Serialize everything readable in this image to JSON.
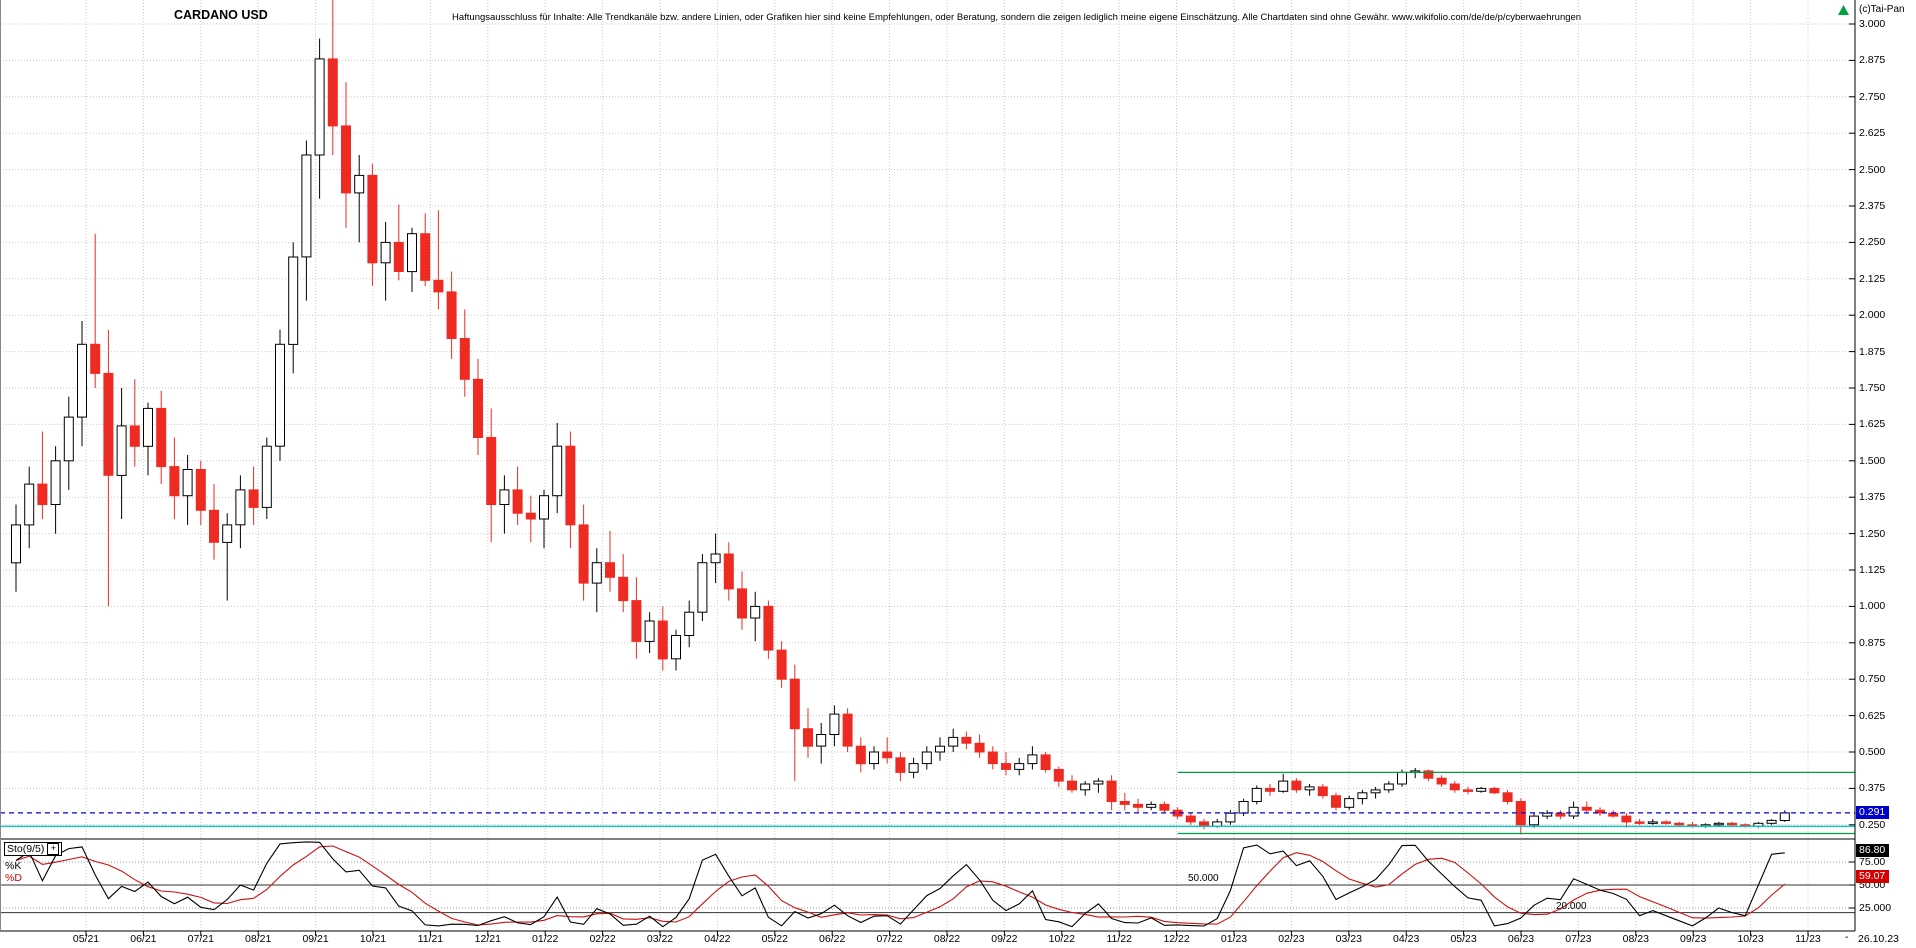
{
  "header": {
    "title": "CARDANO USD",
    "disclaimer": "Haftungsausschluss für Inhalte: Alle Trendkanäle bzw. andere Linien, oder Grafiken hier sind keine Empfehlungen, oder Beratung, sondern die zeigen lediglich meine eigene Einschätzung. Alle Chartdaten sind ohne Gewähr.  www.wikifolio.com/de/de/p/cyberwaehrungen",
    "copyright": "(c)Tai-Pan"
  },
  "price_axis": {
    "labels": [
      "3.000",
      "2.875",
      "2.750",
      "2.625",
      "2.500",
      "2.375",
      "2.250",
      "2.125",
      "2.000",
      "1.875",
      "1.750",
      "1.625",
      "1.500",
      "1.375",
      "1.250",
      "1.125",
      "1.000",
      "0.875",
      "0.750",
      "0.625",
      "0.500",
      "0.375",
      "0.250"
    ]
  },
  "x_axis": {
    "labels": [
      "05/21",
      "06/21",
      "07/21",
      "08/21",
      "09/21",
      "10/21",
      "11/21",
      "12/21",
      "01/22",
      "02/22",
      "03/22",
      "04/22",
      "05/22",
      "06/22",
      "07/22",
      "08/22",
      "09/22",
      "10/22",
      "11/22",
      "12/22",
      "01/23",
      "02/23",
      "03/23",
      "04/23",
      "05/23",
      "06/23",
      "07/23",
      "08/23",
      "09/23",
      "10/23",
      "11/23"
    ],
    "tick_dash": "-",
    "end_date": "26.10.23"
  },
  "current_price": {
    "label": "0.291",
    "value": 0.291
  },
  "sto_panel": {
    "indicator_label": "Sto(9/5)",
    "plus_icon": "+",
    "k_label": "%K",
    "d_label": "%D",
    "k_value": "86.80",
    "d_value": "59.07",
    "k_numeric": 86.8,
    "d_numeric": 59.07,
    "axis_labels": [
      {
        "text": "75.00",
        "value": 75
      },
      {
        "text": "50.00",
        "value": 50
      },
      {
        "text": "25.000",
        "value": 25
      }
    ],
    "annotations": [
      {
        "text": "50.000",
        "value": 50
      },
      {
        "text": "20.000",
        "value": 20
      }
    ],
    "grid_dotted": [
      75,
      25
    ]
  },
  "colors": {
    "up": "#000000",
    "up_fill": "#ffffff",
    "down": "#ee2b22",
    "k_line": "#000000",
    "d_line": "#cc1111",
    "grid": "#c9c9c9",
    "frame": "#000000",
    "green_line": "#00a040",
    "cyan_line": "#00cccc",
    "blue_dashed": "#0000ee",
    "arrow_green": "#00a040"
  },
  "chart_data": {
    "type": "candlestick",
    "title": "CARDANO USD",
    "interval": "weekly",
    "x_range": [
      "04/2021",
      "26.10.2023"
    ],
    "ylim": [
      0.21,
      3.07
    ],
    "grid": true,
    "last_close": 0.291,
    "ohlc": [
      [
        1.15,
        1.35,
        1.05,
        1.28
      ],
      [
        1.28,
        1.48,
        1.2,
        1.42
      ],
      [
        1.42,
        1.6,
        1.3,
        1.35
      ],
      [
        1.35,
        1.55,
        1.25,
        1.5
      ],
      [
        1.5,
        1.72,
        1.4,
        1.65
      ],
      [
        1.65,
        1.98,
        1.55,
        1.9
      ],
      [
        1.9,
        2.28,
        1.75,
        1.8
      ],
      [
        1.8,
        1.95,
        1.0,
        1.45
      ],
      [
        1.45,
        1.75,
        1.3,
        1.62
      ],
      [
        1.62,
        1.78,
        1.48,
        1.55
      ],
      [
        1.55,
        1.7,
        1.45,
        1.68
      ],
      [
        1.68,
        1.74,
        1.42,
        1.48
      ],
      [
        1.48,
        1.58,
        1.3,
        1.38
      ],
      [
        1.38,
        1.52,
        1.28,
        1.47
      ],
      [
        1.47,
        1.5,
        1.28,
        1.33
      ],
      [
        1.33,
        1.42,
        1.16,
        1.22
      ],
      [
        1.22,
        1.32,
        1.02,
        1.28
      ],
      [
        1.28,
        1.45,
        1.2,
        1.4
      ],
      [
        1.4,
        1.48,
        1.28,
        1.34
      ],
      [
        1.34,
        1.58,
        1.3,
        1.55
      ],
      [
        1.55,
        1.95,
        1.5,
        1.9
      ],
      [
        1.9,
        2.25,
        1.8,
        2.2
      ],
      [
        2.2,
        2.6,
        2.05,
        2.55
      ],
      [
        2.55,
        2.95,
        2.4,
        2.88
      ],
      [
        2.88,
        3.1,
        2.55,
        2.65
      ],
      [
        2.65,
        2.8,
        2.3,
        2.42
      ],
      [
        2.42,
        2.55,
        2.25,
        2.48
      ],
      [
        2.48,
        2.52,
        2.1,
        2.18
      ],
      [
        2.18,
        2.32,
        2.05,
        2.25
      ],
      [
        2.25,
        2.38,
        2.12,
        2.15
      ],
      [
        2.15,
        2.3,
        2.08,
        2.28
      ],
      [
        2.28,
        2.35,
        2.1,
        2.12
      ],
      [
        2.12,
        2.36,
        2.02,
        2.08
      ],
      [
        2.08,
        2.15,
        1.85,
        1.92
      ],
      [
        1.92,
        2.02,
        1.72,
        1.78
      ],
      [
        1.78,
        1.85,
        1.52,
        1.58
      ],
      [
        1.58,
        1.68,
        1.22,
        1.35
      ],
      [
        1.35,
        1.45,
        1.25,
        1.4
      ],
      [
        1.4,
        1.48,
        1.28,
        1.32
      ],
      [
        1.32,
        1.38,
        1.22,
        1.3
      ],
      [
        1.3,
        1.4,
        1.2,
        1.38
      ],
      [
        1.38,
        1.63,
        1.32,
        1.55
      ],
      [
        1.55,
        1.6,
        1.2,
        1.28
      ],
      [
        1.28,
        1.35,
        1.02,
        1.08
      ],
      [
        1.08,
        1.2,
        0.98,
        1.15
      ],
      [
        1.15,
        1.26,
        1.05,
        1.1
      ],
      [
        1.1,
        1.18,
        0.98,
        1.02
      ],
      [
        1.02,
        1.1,
        0.82,
        0.88
      ],
      [
        0.88,
        0.98,
        0.84,
        0.95
      ],
      [
        0.95,
        1.0,
        0.78,
        0.82
      ],
      [
        0.82,
        0.92,
        0.78,
        0.9
      ],
      [
        0.9,
        1.02,
        0.86,
        0.98
      ],
      [
        0.98,
        1.18,
        0.95,
        1.15
      ],
      [
        1.15,
        1.25,
        1.08,
        1.18
      ],
      [
        1.18,
        1.22,
        1.02,
        1.06
      ],
      [
        1.06,
        1.12,
        0.92,
        0.96
      ],
      [
        0.96,
        1.05,
        0.88,
        1.0
      ],
      [
        1.0,
        1.02,
        0.82,
        0.85
      ],
      [
        0.85,
        0.88,
        0.72,
        0.75
      ],
      [
        0.75,
        0.8,
        0.4,
        0.58
      ],
      [
        0.58,
        0.65,
        0.48,
        0.52
      ],
      [
        0.52,
        0.6,
        0.46,
        0.56
      ],
      [
        0.56,
        0.66,
        0.52,
        0.63
      ],
      [
        0.63,
        0.65,
        0.5,
        0.52
      ],
      [
        0.52,
        0.55,
        0.43,
        0.46
      ],
      [
        0.46,
        0.52,
        0.44,
        0.5
      ],
      [
        0.5,
        0.55,
        0.46,
        0.48
      ],
      [
        0.48,
        0.5,
        0.4,
        0.43
      ],
      [
        0.43,
        0.48,
        0.41,
        0.46
      ],
      [
        0.46,
        0.52,
        0.44,
        0.5
      ],
      [
        0.5,
        0.55,
        0.47,
        0.52
      ],
      [
        0.52,
        0.58,
        0.5,
        0.55
      ],
      [
        0.55,
        0.57,
        0.51,
        0.53
      ],
      [
        0.53,
        0.56,
        0.48,
        0.5
      ],
      [
        0.5,
        0.52,
        0.44,
        0.46
      ],
      [
        0.46,
        0.5,
        0.42,
        0.44
      ],
      [
        0.44,
        0.48,
        0.42,
        0.46
      ],
      [
        0.46,
        0.52,
        0.44,
        0.49
      ],
      [
        0.49,
        0.5,
        0.43,
        0.44
      ],
      [
        0.44,
        0.45,
        0.38,
        0.4
      ],
      [
        0.4,
        0.42,
        0.36,
        0.37
      ],
      [
        0.37,
        0.4,
        0.35,
        0.39
      ],
      [
        0.39,
        0.41,
        0.36,
        0.4
      ],
      [
        0.4,
        0.42,
        0.3,
        0.33
      ],
      [
        0.33,
        0.36,
        0.3,
        0.32
      ],
      [
        0.32,
        0.34,
        0.29,
        0.31
      ],
      [
        0.31,
        0.33,
        0.3,
        0.32
      ],
      [
        0.32,
        0.33,
        0.29,
        0.3
      ],
      [
        0.3,
        0.31,
        0.27,
        0.28
      ],
      [
        0.28,
        0.29,
        0.25,
        0.26
      ],
      [
        0.26,
        0.27,
        0.235,
        0.245
      ],
      [
        0.245,
        0.27,
        0.24,
        0.26
      ],
      [
        0.26,
        0.3,
        0.25,
        0.29
      ],
      [
        0.29,
        0.34,
        0.28,
        0.33
      ],
      [
        0.33,
        0.385,
        0.32,
        0.375
      ],
      [
        0.375,
        0.39,
        0.35,
        0.365
      ],
      [
        0.365,
        0.425,
        0.36,
        0.4
      ],
      [
        0.4,
        0.41,
        0.36,
        0.37
      ],
      [
        0.37,
        0.39,
        0.35,
        0.38
      ],
      [
        0.38,
        0.39,
        0.34,
        0.35
      ],
      [
        0.35,
        0.36,
        0.3,
        0.31
      ],
      [
        0.31,
        0.35,
        0.3,
        0.34
      ],
      [
        0.34,
        0.37,
        0.32,
        0.36
      ],
      [
        0.36,
        0.38,
        0.34,
        0.37
      ],
      [
        0.37,
        0.4,
        0.36,
        0.39
      ],
      [
        0.39,
        0.44,
        0.38,
        0.43
      ],
      [
        0.43,
        0.445,
        0.41,
        0.435
      ],
      [
        0.435,
        0.44,
        0.4,
        0.41
      ],
      [
        0.41,
        0.42,
        0.38,
        0.39
      ],
      [
        0.39,
        0.4,
        0.36,
        0.37
      ],
      [
        0.37,
        0.38,
        0.355,
        0.365
      ],
      [
        0.365,
        0.38,
        0.36,
        0.375
      ],
      [
        0.375,
        0.38,
        0.355,
        0.36
      ],
      [
        0.36,
        0.37,
        0.32,
        0.33
      ],
      [
        0.33,
        0.34,
        0.218,
        0.25
      ],
      [
        0.25,
        0.29,
        0.24,
        0.28
      ],
      [
        0.28,
        0.3,
        0.27,
        0.29
      ],
      [
        0.29,
        0.3,
        0.27,
        0.28
      ],
      [
        0.28,
        0.33,
        0.27,
        0.31
      ],
      [
        0.31,
        0.33,
        0.29,
        0.3
      ],
      [
        0.3,
        0.31,
        0.28,
        0.29
      ],
      [
        0.29,
        0.3,
        0.275,
        0.28
      ],
      [
        0.28,
        0.29,
        0.24,
        0.26
      ],
      [
        0.26,
        0.27,
        0.25,
        0.255
      ],
      [
        0.255,
        0.27,
        0.25,
        0.26
      ],
      [
        0.26,
        0.265,
        0.25,
        0.255
      ],
      [
        0.255,
        0.26,
        0.245,
        0.25
      ],
      [
        0.25,
        0.26,
        0.24,
        0.245
      ],
      [
        0.245,
        0.255,
        0.24,
        0.25
      ],
      [
        0.25,
        0.26,
        0.245,
        0.255
      ],
      [
        0.255,
        0.26,
        0.245,
        0.25
      ],
      [
        0.25,
        0.255,
        0.24,
        0.245
      ],
      [
        0.245,
        0.26,
        0.24,
        0.255
      ],
      [
        0.255,
        0.27,
        0.25,
        0.265
      ],
      [
        0.265,
        0.3,
        0.26,
        0.291
      ]
    ],
    "overlays": [
      {
        "name": "current-price-line",
        "type": "hline",
        "value": 0.291,
        "color": "#0000ee",
        "dash": "5,4",
        "from_index": null
      },
      {
        "name": "cyan-level-line",
        "type": "hline",
        "value": 0.245,
        "color": "#00cccc",
        "dash": "",
        "from_index": null
      },
      {
        "name": "green-resistance-line",
        "type": "hline",
        "value": 0.43,
        "color": "#00a040",
        "dash": "",
        "from_index": 88
      },
      {
        "name": "green-support-line",
        "type": "hline",
        "value": 0.22,
        "color": "#00a040",
        "dash": "",
        "from_index": 88
      }
    ],
    "indicator": {
      "type": "stochastic",
      "label": "Sto(9/5)",
      "k_period": 9,
      "d_period": 5,
      "k_last": 86.8,
      "d_last": 59.07,
      "hlines": [
        50,
        20
      ],
      "grid": [
        75,
        50,
        25
      ]
    }
  }
}
